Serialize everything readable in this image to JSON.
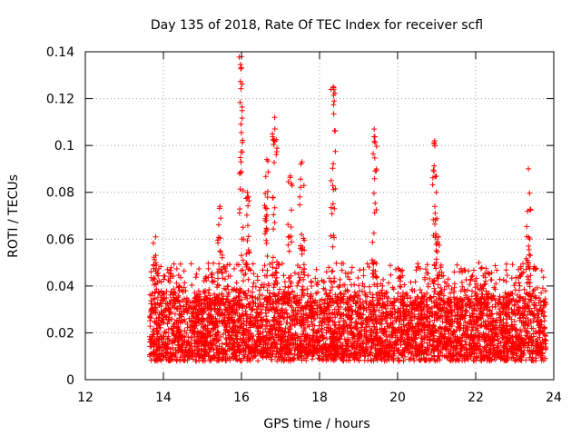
{
  "chart_data": {
    "type": "scatter",
    "title": "Day 135 of 2018, Rate Of TEC Index for receiver scfl",
    "xlabel": "GPS time / hours",
    "ylabel": "ROTI / TECUs",
    "xlim": [
      12,
      24
    ],
    "ylim": [
      0,
      0.14
    ],
    "x_ticks": [
      "12",
      "14",
      "16",
      "18",
      "20",
      "22",
      "24"
    ],
    "y_ticks": [
      "0",
      "0.02",
      "0.04",
      "0.06",
      "0.08",
      "0.1",
      "0.12",
      "0.14"
    ],
    "grid": true,
    "marker": "+",
    "series_color": "#ff0000",
    "data_range": {
      "x_start": 13.65,
      "x_end": 23.8
    },
    "baseline_band": {
      "low": 0.008,
      "high": 0.035
    },
    "spikes": [
      {
        "x": 13.8,
        "y": 0.061
      },
      {
        "x": 15.45,
        "y": 0.074
      },
      {
        "x": 16.0,
        "y": 0.138
      },
      {
        "x": 16.15,
        "y": 0.08
      },
      {
        "x": 16.65,
        "y": 0.094
      },
      {
        "x": 16.85,
        "y": 0.112
      },
      {
        "x": 17.25,
        "y": 0.087
      },
      {
        "x": 17.55,
        "y": 0.093
      },
      {
        "x": 18.35,
        "y": 0.125
      },
      {
        "x": 19.4,
        "y": 0.107
      },
      {
        "x": 20.95,
        "y": 0.102
      },
      {
        "x": 21.05,
        "y": 0.061
      },
      {
        "x": 23.35,
        "y": 0.09
      }
    ]
  }
}
